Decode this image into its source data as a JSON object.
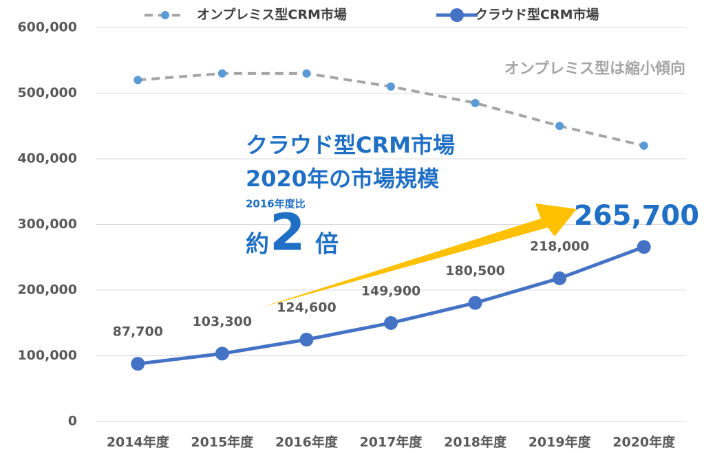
{
  "chart_data": {
    "type": "line",
    "categories": [
      "2014年度",
      "2015年度",
      "2016年度",
      "2017年度",
      "2018年度",
      "2019年度",
      "2020年度"
    ],
    "series": [
      {
        "name": "オンプレミス型CRM市場",
        "color": "#a5a5a5",
        "marker_color": "#5b9bd5",
        "dashed": true,
        "values": [
          520000,
          530000,
          530000,
          510000,
          485000,
          450000,
          420000
        ]
      },
      {
        "name": "クラウド型CRM市場",
        "color": "#4472c4",
        "marker_color": "#4472c4",
        "dashed": false,
        "values": [
          87700,
          103300,
          124600,
          149900,
          180500,
          218000,
          265700
        ],
        "value_labels": [
          "87,700",
          "103,300",
          "124,600",
          "149,900",
          "180,500",
          "218,000",
          "265,700"
        ]
      }
    ],
    "ylim": [
      0,
      600000
    ],
    "yticks": [
      0,
      {
        "value": 100000,
        "label": "100,000"
      },
      {
        "value": 200000,
        "label": "200,000"
      },
      {
        "value": 300000,
        "label": "300,000"
      },
      {
        "value": 400000,
        "label": "400,000"
      },
      {
        "value": 500000,
        "label": "500,000"
      },
      {
        "value": 600000,
        "label": "600,000"
      }
    ],
    "grid": true,
    "legend": "top",
    "annotations": {
      "trend": "オンプレミス型は縮小傾向",
      "headline": [
        "クラウド型CRM市場",
        "2020年の市場規模"
      ],
      "comparison": "2016年度比",
      "ratio_prefix": "約",
      "ratio": 2,
      "ratio_suffix": "倍"
    }
  }
}
